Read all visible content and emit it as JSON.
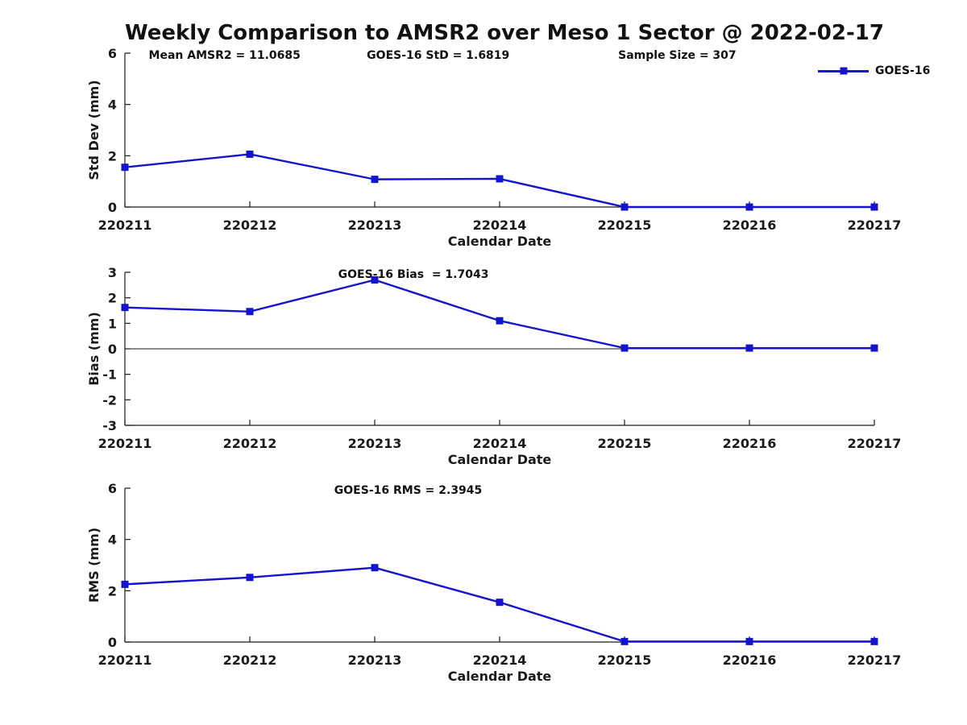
{
  "title": "Weekly Comparison to AMSR2 over Meso 1 Sector @ 2022-02-17",
  "legend": {
    "label": "GOES-16",
    "color": "#1414cc"
  },
  "chart_data": [
    {
      "id": "std-dev",
      "type": "line",
      "categories": [
        "220211",
        "220212",
        "220213",
        "220214",
        "220215",
        "220216",
        "220217"
      ],
      "series": [
        {
          "name": "GOES-16",
          "color": "#1414cc",
          "marker": "square",
          "values": [
            1.55,
            2.06,
            1.08,
            1.1,
            0.0,
            0.0,
            0.0
          ]
        }
      ],
      "xlabel": "Calendar Date",
      "ylabel": "Std Dev (mm)",
      "ylim": [
        0,
        6
      ],
      "yticks": [
        0,
        2,
        4,
        6
      ],
      "grid": false,
      "zero_line": false,
      "legend_position": "northeast-outside",
      "annotations": [
        {
          "text": "Mean AMSR2 = 11.0685",
          "xfrac": 0.133
        },
        {
          "text": "GOES-16 StD = 1.6819",
          "xfrac": 0.418
        },
        {
          "text": "Sample Size = 307",
          "xfrac": 0.737
        }
      ]
    },
    {
      "id": "bias",
      "type": "line",
      "categories": [
        "220211",
        "220212",
        "220213",
        "220214",
        "220215",
        "220216",
        "220217"
      ],
      "series": [
        {
          "name": "GOES-16",
          "color": "#1414cc",
          "marker": "square",
          "values": [
            1.62,
            1.46,
            2.7,
            1.1,
            0.03,
            0.03,
            0.03
          ]
        }
      ],
      "xlabel": "Calendar Date",
      "ylabel": "Bias (mm)",
      "ylim": [
        -3,
        3
      ],
      "yticks": [
        -3,
        -2,
        -1,
        0,
        1,
        2,
        3
      ],
      "grid": false,
      "zero_line": true,
      "annotations": [
        {
          "text": "GOES-16 Bias  = 1.7043",
          "xfrac": 0.385
        }
      ]
    },
    {
      "id": "rms",
      "type": "line",
      "categories": [
        "220211",
        "220212",
        "220213",
        "220214",
        "220215",
        "220216",
        "220217"
      ],
      "series": [
        {
          "name": "GOES-16",
          "color": "#1414cc",
          "marker": "square",
          "values": [
            2.25,
            2.52,
            2.9,
            1.55,
            0.02,
            0.02,
            0.02
          ]
        }
      ],
      "xlabel": "Calendar Date",
      "ylabel": "RMS (mm)",
      "ylim": [
        0,
        6
      ],
      "yticks": [
        0,
        2,
        4,
        6
      ],
      "grid": false,
      "zero_line": false,
      "annotations": [
        {
          "text": "GOES-16 RMS = 2.3945",
          "xfrac": 0.378
        }
      ]
    }
  ]
}
